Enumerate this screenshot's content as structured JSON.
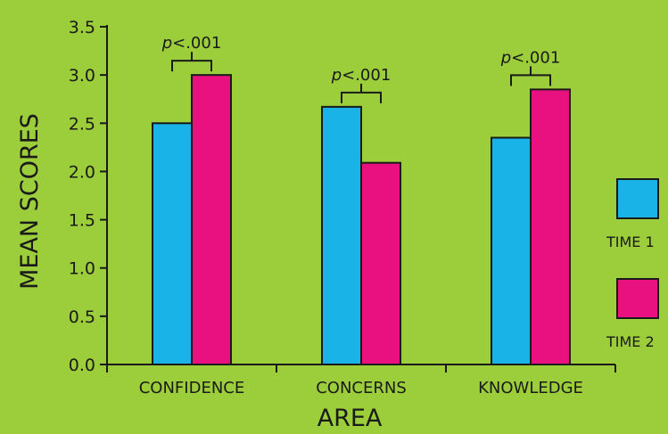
{
  "chart_data": {
    "type": "bar",
    "categories": [
      "CONFIDENCE",
      "CONCERNS",
      "KNOWLEDGE"
    ],
    "series": [
      {
        "name": "TIME 1",
        "color": "#1ab3e8",
        "values": [
          2.5,
          2.67,
          2.35
        ]
      },
      {
        "name": "TIME 2",
        "color": "#e8117f",
        "values": [
          3.0,
          2.09,
          2.85
        ]
      }
    ],
    "xlabel": "AREA",
    "ylabel": "MEAN SCORES",
    "ylim": [
      0,
      3.5
    ],
    "yticks": [
      "0.0",
      "0.5",
      "1.0",
      "1.5",
      "2.0",
      "2.5",
      "3.0",
      "3.5"
    ],
    "annotations": [
      {
        "category": "CONFIDENCE",
        "prefix": "p",
        "text": "<.001"
      },
      {
        "category": "CONCERNS",
        "prefix": "p",
        "text": "<.001"
      },
      {
        "category": "KNOWLEDGE",
        "prefix": "p",
        "text": "<.001"
      }
    ],
    "legend_position": "right",
    "grid": false
  }
}
